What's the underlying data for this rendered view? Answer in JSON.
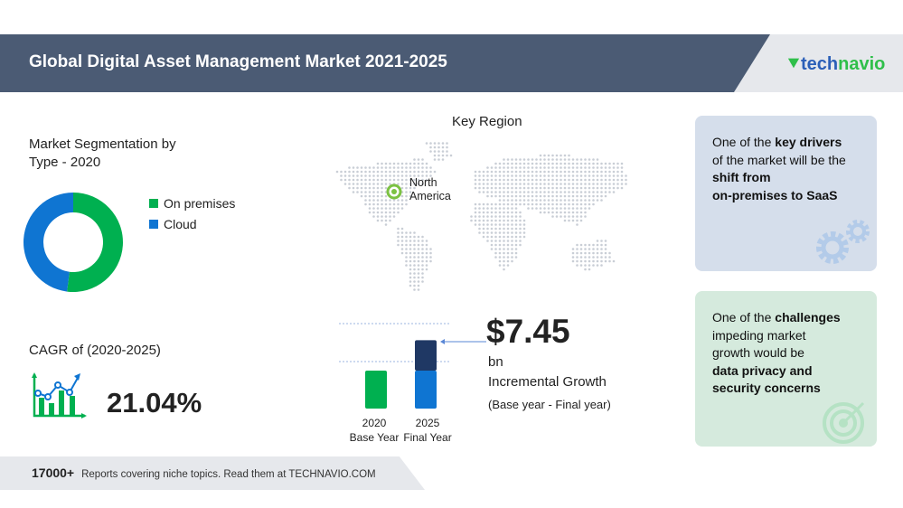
{
  "header": {
    "title": "Global Digital Asset Management Market 2021-2025",
    "logo_text": "technavio",
    "logo_part1": "tech",
    "logo_part2": "navio",
    "brand_color": "#2b5fb8",
    "brand_green": "#2fbf4a"
  },
  "segmentation": {
    "title_line1": "Market Segmentation by",
    "title_line2": "Type - 2020"
  },
  "region": {
    "title": "Key Region",
    "label_line1": "North",
    "label_line2": "America"
  },
  "cagr": {
    "label": "CAGR of (2020-2025)",
    "value": "21.04%"
  },
  "growth": {
    "value": "$7.45",
    "unit": "bn",
    "label": "Incremental Growth",
    "sub": "(Base year - Final year)"
  },
  "cards": {
    "driver": {
      "pre": "One of the ",
      "bold1": "key drivers",
      "mid": "of the market will be the",
      "bold2": "shift from",
      "bold3": "on-premises to SaaS"
    },
    "challenge": {
      "pre": "One of the ",
      "bold1": "challenges",
      "mid1": "impeding market",
      "mid2": "growth would be",
      "bold2": "data privacy and",
      "bold3": "security concerns"
    }
  },
  "footer": {
    "count": "17000+",
    "text": "Reports covering niche topics. Read them at TECHNAVIO.COM"
  },
  "chart_data": [
    {
      "type": "pie",
      "title": "Market Segmentation by Type - 2020",
      "donut": true,
      "categories": [
        "On premises",
        "Cloud"
      ],
      "values": [
        52,
        48
      ],
      "colors": [
        "#00b050",
        "#0f75d2"
      ],
      "legend_placement": "right"
    },
    {
      "type": "bar",
      "categories": [
        "2020",
        "2025"
      ],
      "category_sublabels": [
        "Base Year",
        "Final Year"
      ],
      "stacked": true,
      "series": [
        {
          "values": [
            1,
            1
          ],
          "colors": [
            "#00b050",
            "#0f75d2"
          ]
        },
        {
          "values": [
            0,
            0.8
          ],
          "colors": [
            "#1f3864",
            "#1f3864"
          ]
        }
      ],
      "annotation": "$7.45 bn Incremental Growth",
      "grid": false
    }
  ]
}
